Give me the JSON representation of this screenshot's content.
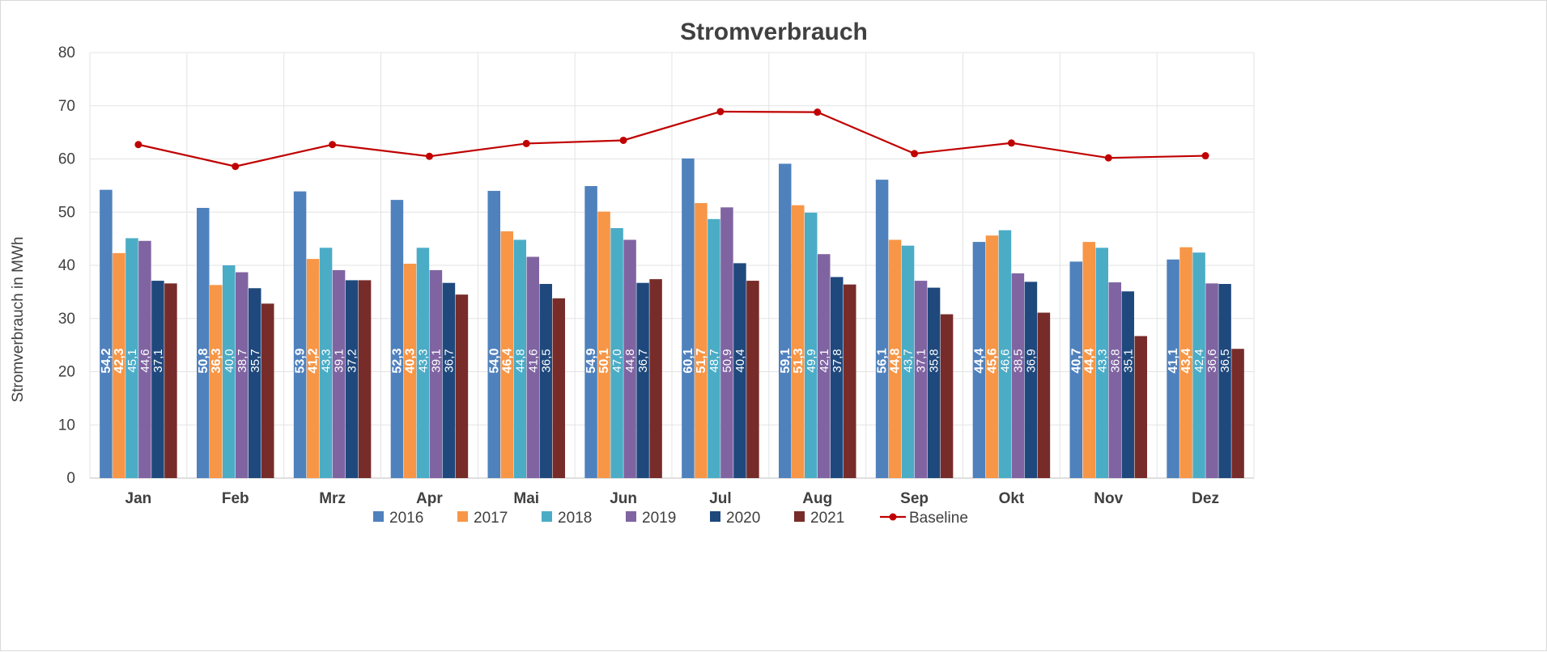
{
  "chart_data": {
    "type": "bar",
    "title": "Stromverbrauch",
    "ylabel": "Stromverbrauch  in MWh",
    "xlabel": "",
    "ylim": [
      0,
      80
    ],
    "yticks": [
      "0",
      "10",
      "20",
      "30",
      "40",
      "50",
      "60",
      "70",
      "80"
    ],
    "grid": true,
    "legend_position": "bottom",
    "categories": [
      "Jan",
      "Feb",
      "Mrz",
      "Apr",
      "Mai",
      "Jun",
      "Jul",
      "Aug",
      "Sep",
      "Okt",
      "Nov",
      "Dez"
    ],
    "series": [
      {
        "name": "2016",
        "color": "#4f81bd",
        "values": [
          54.2,
          50.8,
          53.9,
          52.3,
          54.0,
          54.9,
          60.1,
          59.1,
          56.1,
          44.4,
          40.7,
          41.1
        ],
        "labels": [
          "54,2",
          "50,8",
          "53,9",
          "52,3",
          "54,0",
          "54,9",
          "60,1",
          "59,1",
          "56,1",
          "44,4",
          "40,7",
          "41,1"
        ]
      },
      {
        "name": "2017",
        "color": "#f79646",
        "values": [
          42.3,
          36.3,
          41.2,
          40.3,
          46.4,
          50.1,
          51.7,
          51.3,
          44.8,
          45.6,
          44.4,
          43.4
        ],
        "labels": [
          "42,3",
          "36,3",
          "41,2",
          "40,3",
          "46,4",
          "50,1",
          "51,7",
          "51,3",
          "44,8",
          "45,6",
          "44,4",
          "43,4"
        ]
      },
      {
        "name": "2018",
        "color": "#4bacc6",
        "values": [
          45.1,
          40.0,
          43.3,
          43.3,
          44.8,
          47.0,
          48.7,
          49.9,
          43.7,
          46.6,
          43.3,
          42.4
        ],
        "labels": [
          "45,1",
          "40,0",
          "43,3",
          "43,3",
          "44,8",
          "47,0",
          "48,7",
          "49,9",
          "43,7",
          "46,6",
          "43,3",
          "42,4"
        ]
      },
      {
        "name": "2019",
        "color": "#8064a2",
        "values": [
          44.6,
          38.7,
          39.1,
          39.1,
          41.6,
          44.8,
          50.9,
          42.1,
          37.1,
          38.5,
          36.8,
          36.6
        ],
        "labels": [
          "44,6",
          "38,7",
          "39,1",
          "39,1",
          "41,6",
          "44,8",
          "50,9",
          "42,1",
          "37,1",
          "38,5",
          "36,8",
          "36,6"
        ]
      },
      {
        "name": "2020",
        "color": "#1f497d",
        "values": [
          37.1,
          35.7,
          37.2,
          36.7,
          36.5,
          36.7,
          40.4,
          37.8,
          35.8,
          36.9,
          35.1,
          36.5
        ],
        "labels": [
          "37,1",
          "35,7",
          "37,2",
          "36,7",
          "36,5",
          "36,7",
          "40,4",
          "37,8",
          "35,8",
          "36,9",
          "35,1",
          "36,5"
        ]
      },
      {
        "name": "2021",
        "color": "#772c2a",
        "values": [
          36.6,
          32.8,
          37.2,
          34.5,
          33.8,
          37.4,
          37.1,
          36.4,
          30.8,
          31.1,
          26.7,
          24.3
        ],
        "labels": []
      }
    ],
    "baseline": {
      "name": "Baseline",
      "type": "line",
      "color": "#c00000",
      "values": [
        62.7,
        58.6,
        62.7,
        60.5,
        62.9,
        63.5,
        68.9,
        68.8,
        61.0,
        63.0,
        60.2,
        60.6
      ]
    }
  }
}
